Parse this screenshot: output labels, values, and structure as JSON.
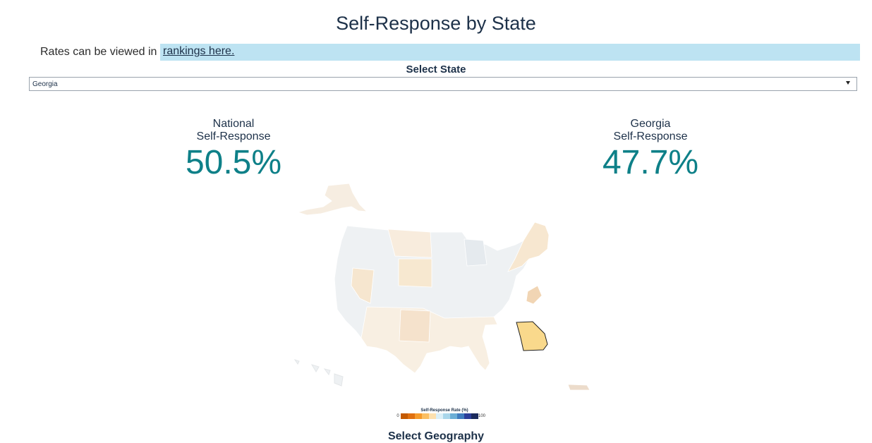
{
  "title": "Self-Response by State",
  "rates": {
    "prefix": "Rates can be viewed in",
    "link_text": "rankings here."
  },
  "state_select": {
    "label": "Select State",
    "selected": "Georgia"
  },
  "stats": {
    "national": {
      "line1": "National",
      "line2": "Self-Response",
      "value": "50.5%"
    },
    "state": {
      "line1": "Georgia",
      "line2": "Self-Response",
      "value": "47.7%"
    }
  },
  "map": {
    "highlighted_state": "Georgia",
    "highlight_color": "#f9d98c"
  },
  "legend": {
    "title": "Self-Response Rate (%)",
    "min": "0",
    "max": "100",
    "colors": [
      "#c45a00",
      "#e0700f",
      "#f59b2b",
      "#fbbf63",
      "#fde0ae",
      "#dbeff7",
      "#a9d6ea",
      "#6baed6",
      "#3f7cbf",
      "#2b3d99",
      "#1b2a5c"
    ]
  },
  "geography_select": {
    "label": "Select Geography"
  }
}
